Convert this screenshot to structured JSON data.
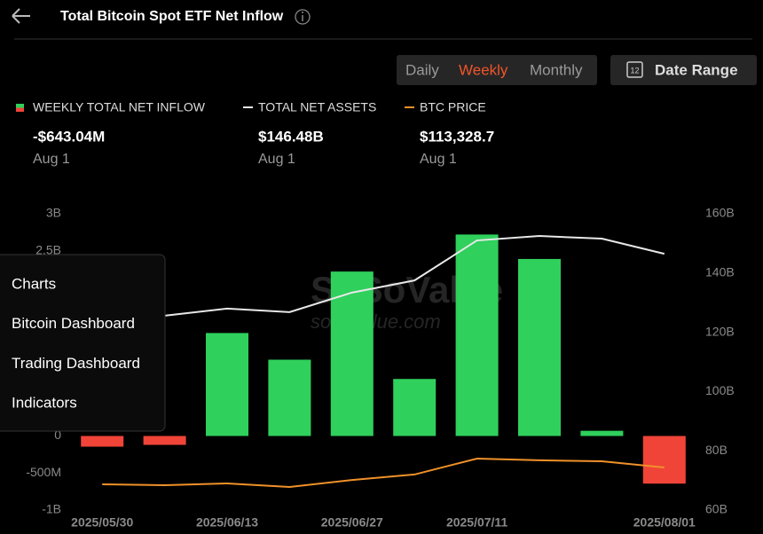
{
  "header": {
    "title": "Total Bitcoin Spot ETF Net Inflow"
  },
  "tabs": [
    "Daily",
    "Weekly",
    "Monthly"
  ],
  "active_tab": 1,
  "date_range": {
    "label": "Date Range",
    "icon_text": "12"
  },
  "watermark": {
    "brand": "SoSoValue",
    "site": "sosovalue.com"
  },
  "menu": [
    "Charts",
    "Bitcoin Dashboard",
    "Trading Dashboard",
    "Indicators"
  ],
  "chart_data": {
    "type": "bar",
    "categories": [
      "2025/05/30",
      null,
      "2025/06/13",
      null,
      "2025/06/27",
      null,
      "2025/07/11",
      null,
      null,
      "2025/08/01"
    ],
    "series": [
      {
        "name": "WEEKLY TOTAL NET INFLOW",
        "type": "bar",
        "color": "#2fd05c",
        "negative_color": "#f04438",
        "latest": "-$643.04M",
        "latest_date": "Aug 1",
        "values": [
          -0.144,
          -0.12,
          1.39,
          1.03,
          2.22,
          0.77,
          2.72,
          2.39,
          0.07,
          -0.64304
        ]
      },
      {
        "name": "TOTAL NET ASSETS",
        "type": "line",
        "axis": "y2",
        "color": "#e8e8e8",
        "latest": "$146.48B",
        "latest_date": "Aug 1",
        "values": [
          null,
          125.6,
          128.0,
          126.8,
          133.4,
          137.5,
          151.0,
          152.5,
          151.6,
          146.48
        ]
      },
      {
        "name": "BTC PRICE",
        "type": "line",
        "axis": "y3",
        "color": "#f0912a",
        "latest": "$113,328.7",
        "latest_date": "Aug 1",
        "values": [
          102500,
          101900,
          103100,
          100800,
          105300,
          108800,
          119000,
          117900,
          117300,
          113328.7
        ]
      }
    ],
    "ylim": [
      -1,
      3
    ],
    "yticks": [
      {
        "value": 3,
        "label": "3B"
      },
      {
        "value": 2.5,
        "label": "2.5B"
      },
      0,
      {
        "value": -0.5,
        "label": "-500M"
      },
      {
        "value": -1,
        "label": "-1B"
      }
    ],
    "y2lim": [
      60,
      160
    ],
    "y2ticks": [
      {
        "value": 160,
        "label": "160B"
      },
      {
        "value": 140,
        "label": "140B"
      },
      {
        "value": 120,
        "label": "120B"
      },
      {
        "value": 100,
        "label": "100B"
      },
      {
        "value": 80,
        "label": "80B"
      },
      {
        "value": 60,
        "label": "60B"
      }
    ],
    "y3lim": [
      86000,
      276000
    ],
    "grid": false
  }
}
